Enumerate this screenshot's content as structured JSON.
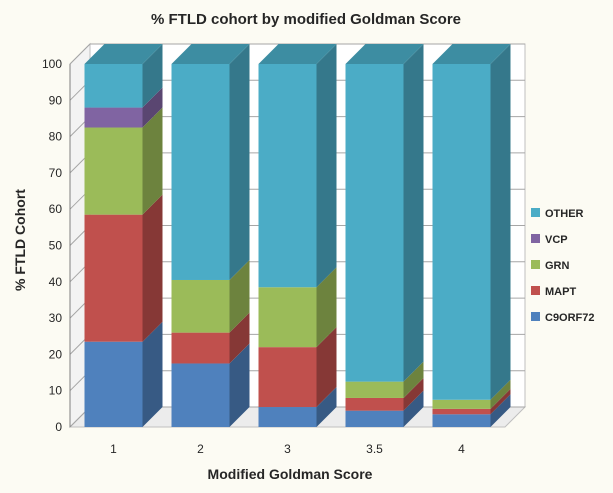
{
  "chart_data": {
    "type": "bar",
    "stacked": true,
    "three_d": true,
    "title": "% FTLD cohort by modified Goldman Score",
    "xlabel": "Modified Goldman Score",
    "ylabel": "% FTLD Cohort",
    "categories": [
      "1",
      "2",
      "3",
      "3.5",
      "4"
    ],
    "ylim": [
      0,
      100
    ],
    "yticks": [
      0,
      10,
      20,
      30,
      40,
      50,
      60,
      70,
      80,
      90,
      100
    ],
    "grid": true,
    "legend_position": "right",
    "series": [
      {
        "name": "C9ORF72",
        "color": "#4f81bd",
        "values": [
          23.5,
          17.5,
          5.5,
          4.5,
          3.5
        ]
      },
      {
        "name": "MAPT",
        "color": "#c0504d",
        "values": [
          35,
          8.5,
          16.5,
          3.5,
          1.5
        ]
      },
      {
        "name": "GRN",
        "color": "#9bbb59",
        "values": [
          24,
          14.5,
          16.5,
          4.5,
          2.5
        ]
      },
      {
        "name": "VCP",
        "color": "#8064a2",
        "values": [
          5.5,
          0,
          0,
          0,
          0
        ]
      },
      {
        "name": "OTHER",
        "color": "#4bacc6",
        "values": [
          12,
          59.5,
          61.5,
          87.5,
          92.5
        ]
      }
    ]
  }
}
